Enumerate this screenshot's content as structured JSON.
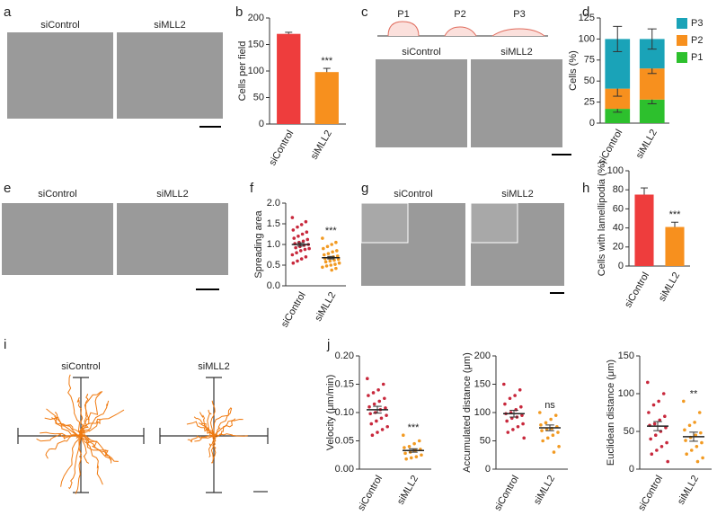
{
  "panel_labels": [
    "a",
    "b",
    "c",
    "d",
    "e",
    "f",
    "g",
    "h",
    "i",
    "j"
  ],
  "image_labels": [
    "siControl",
    "siMLL2",
    "siControl",
    "siMLL2",
    "siControl",
    "siMLL2",
    "siControl",
    "siMLL2",
    "siControl",
    "siMLL2"
  ],
  "schematic_labels": [
    "P1",
    "P2",
    "P3"
  ],
  "chart_data": [
    {
      "type": "bar",
      "ylabel": "Cells per field",
      "categories": [
        "siControl",
        "siMLL2"
      ],
      "values": [
        170,
        98
      ],
      "errors": [
        3,
        7
      ],
      "colors": [
        "#ee3d3d",
        "#f7901e"
      ],
      "ylim": [
        0,
        200
      ],
      "yticks": [
        0,
        50,
        100,
        150,
        200
      ],
      "annotation": "***"
    },
    {
      "type": "stacked_bar",
      "ylabel": "Cells (%)",
      "categories": [
        "siControl",
        "siMLL2"
      ],
      "series": [
        {
          "name": "P1",
          "color": "#2dc02d",
          "values": [
            17,
            28
          ],
          "errors": [
            4,
            5
          ]
        },
        {
          "name": "P2",
          "color": "#f7901e",
          "values": [
            24,
            37
          ],
          "errors": [
            9,
            6
          ]
        },
        {
          "name": "P3",
          "color": "#1aa3b8",
          "values": [
            59,
            35
          ],
          "errors": [
            15,
            12
          ]
        }
      ],
      "ylim": [
        0,
        125
      ],
      "yticks": [
        0,
        25,
        50,
        75,
        100,
        125
      ]
    },
    {
      "type": "strip",
      "ylabel": "Spreading area",
      "categories": [
        "siControl",
        "siMLL2"
      ],
      "colors": [
        "#c8283c",
        "#f29a22"
      ],
      "points": [
        [
          1.65,
          1.55,
          1.48,
          1.42,
          1.35,
          1.3,
          1.25,
          1.2,
          1.15,
          1.12,
          1.08,
          1.05,
          1.02,
          1.0,
          0.98,
          0.95,
          0.92,
          0.9,
          0.88,
          0.85,
          0.8,
          0.75,
          0.7,
          0.65,
          0.6,
          0.55
        ],
        [
          1.15,
          1.05,
          1.0,
          0.95,
          0.9,
          0.85,
          0.82,
          0.78,
          0.75,
          0.72,
          0.7,
          0.68,
          0.66,
          0.64,
          0.62,
          0.6,
          0.58,
          0.55,
          0.52,
          0.5,
          0.48,
          0.45,
          0.42,
          0.38
        ]
      ],
      "means": [
        1.0,
        0.68
      ],
      "errors": [
        0.04,
        0.03
      ],
      "ylim": [
        0,
        2
      ],
      "yticks": [
        {
          "value": 0,
          "label": "0.0"
        },
        0.5,
        {
          "value": 1,
          "label": "1.0"
        },
        1.5,
        {
          "value": 2,
          "label": "2.0"
        }
      ],
      "annotation": "***"
    },
    {
      "type": "bar",
      "ylabel": "Cells with lamellipodia (%)",
      "categories": [
        "siControl",
        "siMLL2"
      ],
      "values": [
        75,
        41
      ],
      "errors": [
        7,
        5
      ],
      "colors": [
        "#ee3d3d",
        "#f7901e"
      ],
      "ylim": [
        0,
        100
      ],
      "yticks": [
        0,
        20,
        40,
        60,
        80,
        100
      ],
      "annotation": "***"
    },
    {
      "type": "strip",
      "ylabel": "Velocity (μm/min)",
      "categories": [
        "siControl",
        "siMLL2"
      ],
      "colors": [
        "#c8283c",
        "#f29a22"
      ],
      "points": [
        [
          0.16,
          0.15,
          0.14,
          0.135,
          0.13,
          0.125,
          0.12,
          0.115,
          0.11,
          0.108,
          0.105,
          0.1,
          0.098,
          0.095,
          0.09,
          0.085,
          0.08,
          0.075,
          0.07,
          0.065,
          0.06
        ],
        [
          0.06,
          0.05,
          0.045,
          0.04,
          0.038,
          0.035,
          0.033,
          0.03,
          0.028,
          0.025,
          0.022,
          0.02,
          0.018
        ]
      ],
      "means": [
        0.105,
        0.033
      ],
      "errors": [
        0.006,
        0.003
      ],
      "ylim": [
        0,
        0.2
      ],
      "yticks": [
        {
          "value": 0,
          "label": "0.00"
        },
        0.05,
        {
          "value": 0.1,
          "label": "0.10"
        },
        0.15,
        {
          "value": 0.2,
          "label": "0.20"
        }
      ],
      "annotation": "***"
    },
    {
      "type": "strip",
      "ylabel": "Accumulated distance (μm)",
      "categories": [
        "siControl",
        "siMLL2"
      ],
      "colors": [
        "#c8283c",
        "#f29a22"
      ],
      "points": [
        [
          150,
          140,
          130,
          125,
          115,
          110,
          105,
          100,
          98,
          95,
          92,
          90,
          85,
          80,
          75,
          70,
          65,
          55
        ],
        [
          100,
          95,
          88,
          82,
          78,
          75,
          72,
          70,
          68,
          65,
          60,
          55,
          50,
          40,
          30
        ]
      ],
      "means": [
        98,
        73
      ],
      "errors": [
        6,
        5
      ],
      "ylim": [
        0,
        200
      ],
      "yticks": [
        0,
        50,
        100,
        150,
        200
      ],
      "annotation": "ns"
    },
    {
      "type": "strip",
      "ylabel": "Euclidean distance (μm)",
      "categories": [
        "siControl",
        "siMLL2"
      ],
      "colors": [
        "#c8283c",
        "#f29a22"
      ],
      "points": [
        [
          115,
          100,
          90,
          85,
          75,
          70,
          65,
          60,
          58,
          55,
          50,
          45,
          40,
          35,
          30,
          25,
          20,
          10
        ],
        [
          90,
          75,
          62,
          58,
          52,
          48,
          45,
          42,
          38,
          35,
          30,
          25,
          20,
          15,
          10
        ]
      ],
      "means": [
        57,
        43
      ],
      "errors": [
        6,
        6
      ],
      "ylim": [
        0,
        150
      ],
      "yticks": [
        0,
        50,
        100,
        150
      ],
      "annotation": "**"
    }
  ]
}
